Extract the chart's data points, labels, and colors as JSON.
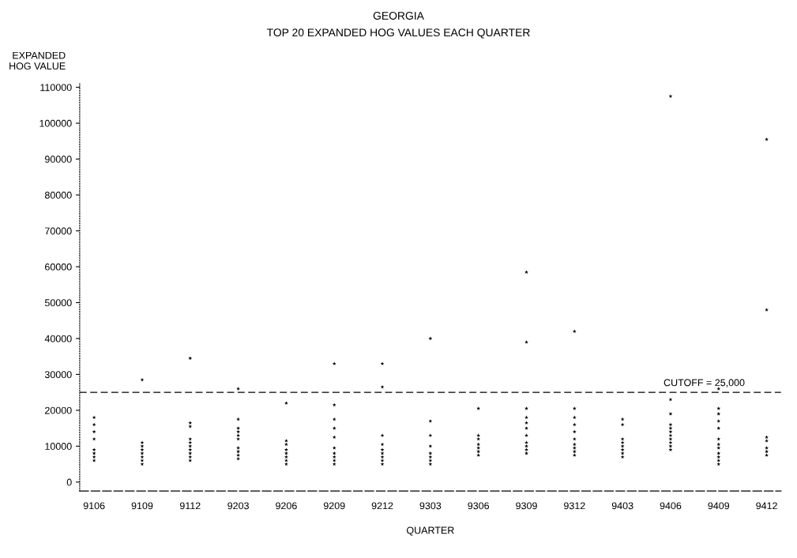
{
  "chart_data": {
    "type": "scatter",
    "title": "GEORGIA",
    "subtitle": "TOP 20 EXPANDED HOG VALUES EACH QUARTER",
    "xlabel": "QUARTER",
    "ylabel": "EXPANDED\nHOG VALUE",
    "categories": [
      "9106",
      "9109",
      "9112",
      "9203",
      "9206",
      "9209",
      "9212",
      "9303",
      "9306",
      "9309",
      "9312",
      "9403",
      "9406",
      "9409",
      "9412"
    ],
    "series": [
      {
        "color": "#000000",
        "values": [
          18000,
          28500,
          34500,
          26000,
          22000,
          33000,
          33000,
          40000,
          20500,
          58500,
          42000,
          17500,
          107500,
          26000,
          95500
        ]
      },
      {
        "color": "#000000",
        "values": [
          16000,
          11000,
          16500,
          17500,
          11500,
          21500,
          26500,
          17000,
          13000,
          39000,
          20500,
          16000,
          23000,
          20500,
          48000
        ]
      },
      {
        "color": "#000000",
        "values": [
          14000,
          10000,
          15500,
          15000,
          10500,
          17500,
          13000,
          13000,
          12000,
          20500,
          18000,
          12000,
          19000,
          19000,
          12500
        ]
      },
      {
        "color": "#000000",
        "values": [
          12000,
          9000,
          12000,
          14000,
          9000,
          15000,
          10500,
          10000,
          10500,
          18000,
          16000,
          11000,
          16000,
          17000,
          11500
        ]
      },
      {
        "color": "#000000",
        "values": [
          9000,
          8000,
          11000,
          13000,
          8000,
          12500,
          9000,
          8000,
          9500,
          16500,
          14000,
          10000,
          15000,
          15000,
          9500
        ]
      },
      {
        "color": "#000000",
        "values": [
          8000,
          7000,
          10000,
          12000,
          7000,
          9500,
          8000,
          7000,
          8500,
          15000,
          12000,
          9000,
          14000,
          12000,
          8500
        ]
      },
      {
        "color": "#000000",
        "values": [
          7000,
          6000,
          9000,
          9500,
          6000,
          8000,
          7000,
          6000,
          7500,
          13000,
          10500,
          8000,
          13000,
          10500,
          7500
        ]
      },
      {
        "color": "#000000",
        "values": [
          6000,
          5000,
          8000,
          8500,
          5000,
          7000,
          6000,
          5000,
          null,
          11000,
          9500,
          7000,
          12000,
          9500,
          null
        ]
      },
      {
        "color": "#000000",
        "values": [
          null,
          null,
          7000,
          7500,
          null,
          6000,
          5000,
          null,
          null,
          10000,
          8500,
          null,
          11000,
          8000,
          null
        ]
      },
      {
        "color": "#000000",
        "values": [
          null,
          null,
          6000,
          6500,
          null,
          5000,
          null,
          null,
          null,
          9000,
          7500,
          null,
          10000,
          7000,
          null
        ]
      },
      {
        "color": "#000000",
        "values": [
          null,
          null,
          null,
          null,
          null,
          null,
          null,
          null,
          null,
          8000,
          null,
          null,
          9000,
          6000,
          null
        ]
      },
      {
        "color": "#000000",
        "values": [
          null,
          null,
          null,
          null,
          null,
          null,
          null,
          null,
          null,
          null,
          null,
          null,
          null,
          5000,
          null
        ]
      }
    ],
    "ylim": [
      -2500,
      111000
    ],
    "yticks": [
      0,
      10000,
      20000,
      30000,
      40000,
      50000,
      60000,
      70000,
      80000,
      90000,
      100000,
      110000
    ],
    "ref_lines": [
      {
        "axis": "y",
        "value": 25000,
        "label": "CUTOFF = 25,000",
        "color": "#000000",
        "line_style": "dashed"
      }
    ],
    "marker": "star",
    "grid": false,
    "legend": false
  }
}
